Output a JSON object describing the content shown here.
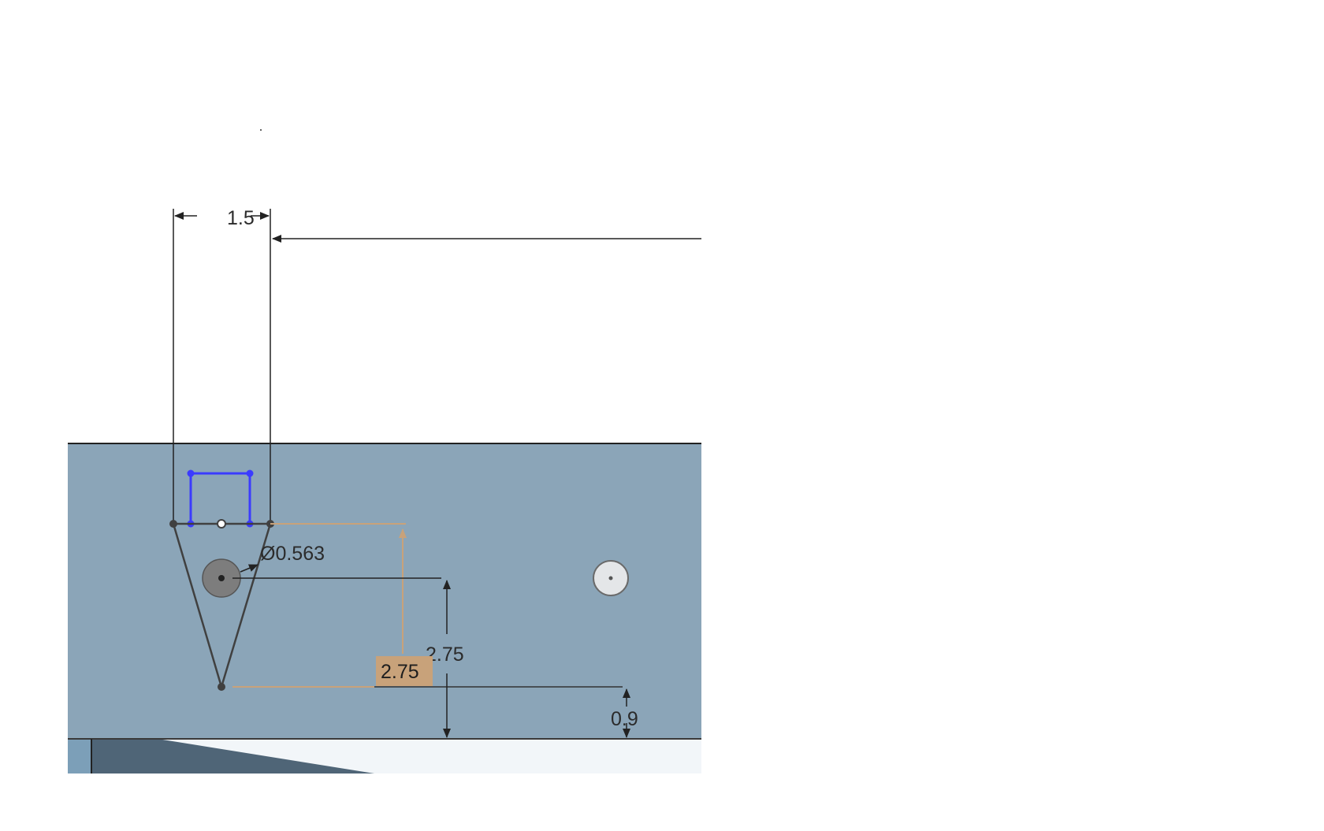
{
  "sketch": {
    "dimensions": {
      "width_top": "1.5",
      "hole_diameter": "Ø0.563",
      "height_right": "2.75",
      "height_selected": "2.75",
      "offset_bottom": "0.9"
    },
    "colors": {
      "part_face": "#8ba5b8",
      "sketch_line": "#404040",
      "selected_sketch": "#3b3bff",
      "highlight_dimension": "#c8a27a",
      "dimension_line": "#222222"
    }
  }
}
